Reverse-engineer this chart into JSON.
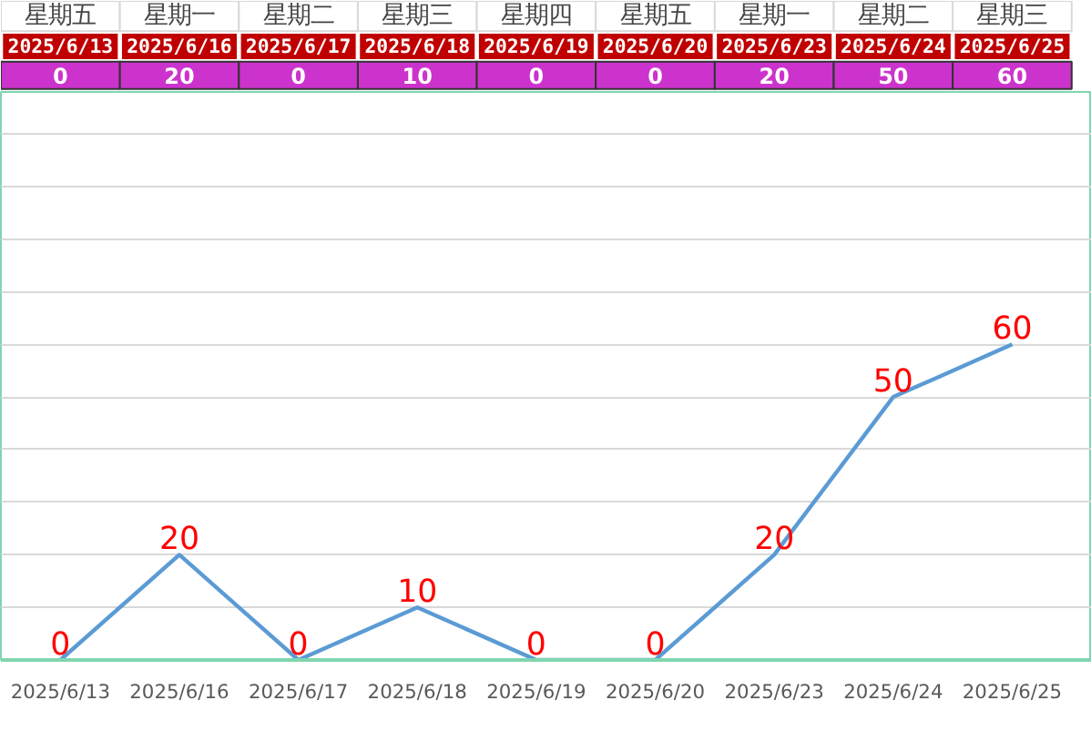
{
  "chart_data": [
    {
      "type": "other",
      "categories": [
        "2025/6/13",
        "2025/6/16",
        "2025/6/17",
        "2025/6/18",
        "2025/6/19",
        "2025/6/20",
        "2025/6/23",
        "2025/6/24",
        "2025/6/25"
      ],
      "values": [
        0,
        20,
        0,
        10,
        0,
        0,
        20,
        50,
        60
      ],
      "data_labels": true,
      "annotations": [
        "星期五",
        "星期一",
        "星期二",
        "星期三",
        "星期四",
        "星期五",
        "星期一",
        "星期二",
        "星期三"
      ]
    },
    {
      "type": "line",
      "categories": [
        "2025/6/13",
        "2025/6/16",
        "2025/6/17",
        "2025/6/18",
        "2025/6/19",
        "2025/6/20",
        "2025/6/23",
        "2025/6/24",
        "2025/6/25"
      ],
      "series": [
        {
          "color": "#5b9bd5",
          "values": [
            0,
            20,
            0,
            10,
            0,
            0,
            20,
            50,
            60
          ]
        }
      ],
      "data_labels": true,
      "ylim": [
        0,
        108
      ],
      "yticks": [
        {
          "value": 0,
          "label": null
        },
        {
          "value": 10,
          "label": null
        },
        {
          "value": 20,
          "label": null
        },
        {
          "value": 30,
          "label": null
        },
        {
          "value": 40,
          "label": null
        },
        {
          "value": 50,
          "label": null
        },
        {
          "value": 60,
          "label": null
        },
        {
          "value": 70,
          "label": null
        },
        {
          "value": 80,
          "label": null
        },
        {
          "value": 90,
          "label": null
        },
        {
          "value": 100,
          "label": null
        }
      ],
      "tick_labels": "x",
      "grid": "y",
      "marker": "none",
      "line_style": "solid"
    }
  ]
}
